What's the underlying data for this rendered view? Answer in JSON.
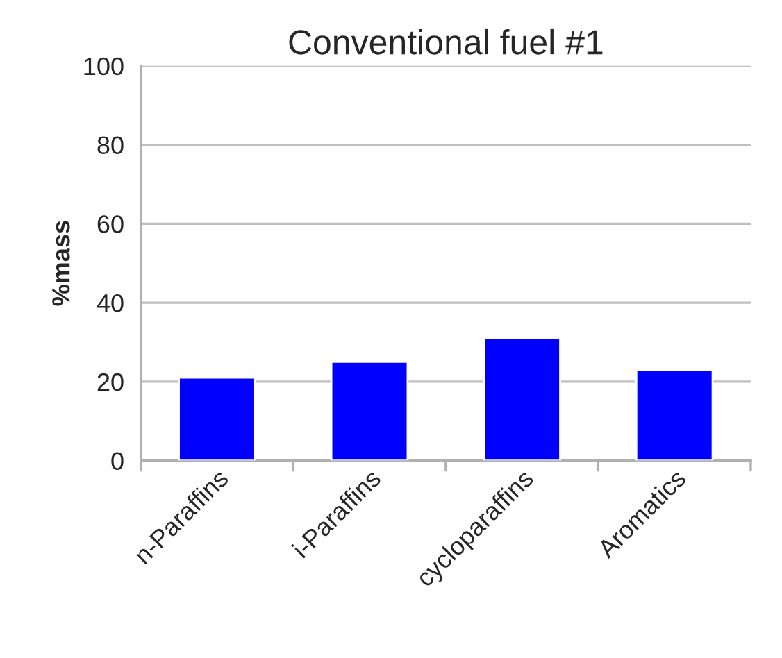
{
  "chart_data": {
    "type": "bar",
    "title": "Conventional fuel #1",
    "ylabel": "%mass",
    "categories": [
      "n-Paraffins",
      "i-Paraffins",
      "cycloparaffins",
      "Aromatics"
    ],
    "values": [
      21,
      25,
      31,
      23
    ],
    "color": "#0000ff",
    "ylim": [
      0,
      100
    ],
    "yticks": [
      0,
      20,
      40,
      60,
      80,
      100
    ],
    "grid": "y"
  }
}
